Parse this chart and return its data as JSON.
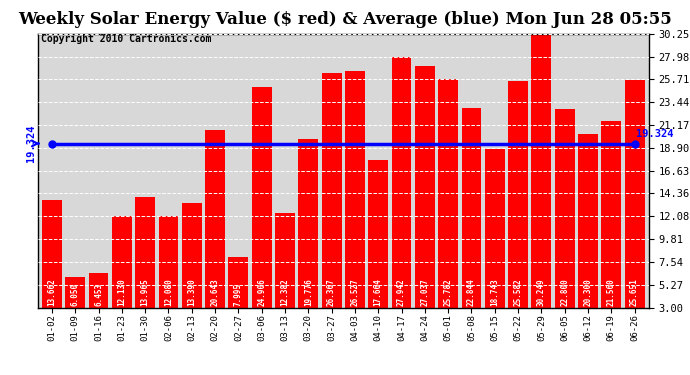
{
  "title": "Weekly Solar Energy Value ($ red) & Average (blue) Mon Jun 28 05:55",
  "copyright": "Copyright 2010 Cartronics.com",
  "categories": [
    "01-02",
    "01-09",
    "01-16",
    "01-23",
    "01-30",
    "02-06",
    "02-13",
    "02-20",
    "02-27",
    "03-06",
    "03-13",
    "03-20",
    "03-27",
    "04-03",
    "04-10",
    "04-17",
    "04-24",
    "05-01",
    "05-08",
    "05-15",
    "05-22",
    "05-29",
    "06-05",
    "06-12",
    "06-19",
    "06-26"
  ],
  "values": [
    13.662,
    6.05,
    6.453,
    12.13,
    13.965,
    12.08,
    13.39,
    20.643,
    7.995,
    24.906,
    12.382,
    19.776,
    26.367,
    26.527,
    17.664,
    27.942,
    27.037,
    25.782,
    22.844,
    18.743,
    25.582,
    30.249,
    22.8,
    20.3,
    21.56,
    25.651
  ],
  "average": 19.324,
  "bar_color": "#ff0000",
  "avg_line_color": "#0000ff",
  "bg_color": "#ffffff",
  "plot_bg_color": "#d8d8d8",
  "grid_color": "#ffffff",
  "ymin": 3.0,
  "ymax": 30.25,
  "yticks": [
    3.0,
    5.27,
    7.54,
    9.81,
    12.08,
    14.36,
    16.63,
    18.9,
    21.17,
    23.44,
    25.71,
    27.98,
    30.25
  ],
  "title_fontsize": 12,
  "copyright_fontsize": 7,
  "bar_label_fontsize": 5.5,
  "avg_label": "19.324",
  "avg_label_fontsize": 7.5,
  "ytick_fontsize": 7.5,
  "xtick_fontsize": 6.5
}
